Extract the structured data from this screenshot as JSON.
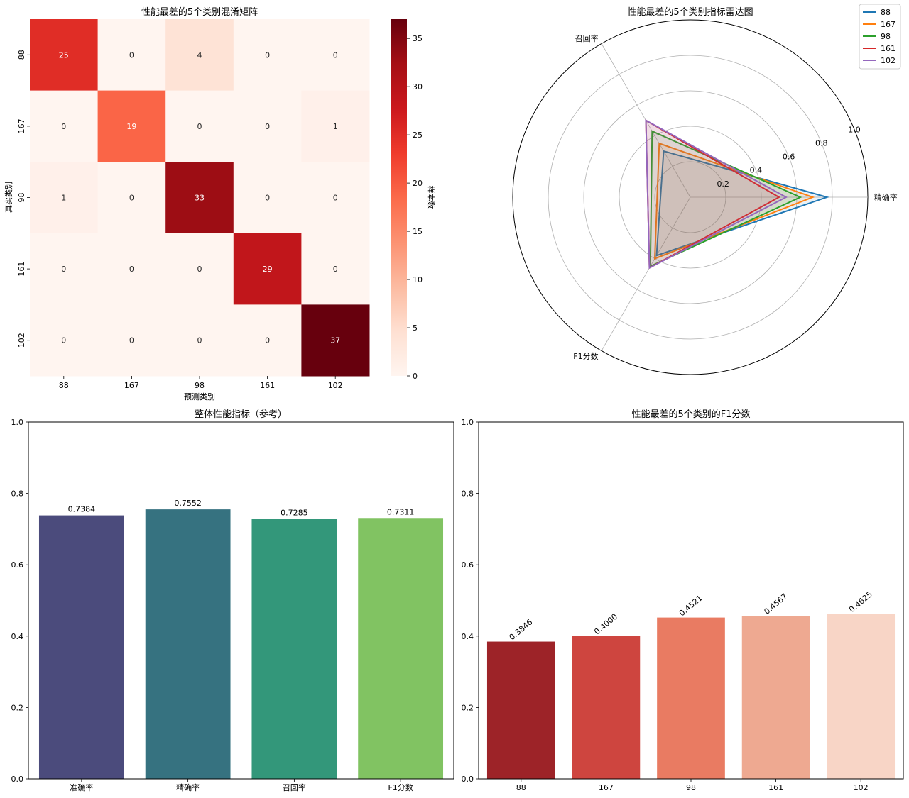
{
  "chart_data": [
    {
      "type": "heatmap",
      "title": "性能最差的5个类别混淆矩阵",
      "xlabel": "预测类别",
      "ylabel": "真实类别",
      "x_categories": [
        "88",
        "167",
        "98",
        "161",
        "102"
      ],
      "y_categories": [
        "88",
        "167",
        "98",
        "161",
        "102"
      ],
      "matrix": [
        [
          25,
          0,
          4,
          0,
          0
        ],
        [
          0,
          19,
          0,
          0,
          1
        ],
        [
          1,
          0,
          33,
          0,
          0
        ],
        [
          0,
          0,
          0,
          29,
          0
        ],
        [
          0,
          0,
          0,
          0,
          37
        ]
      ],
      "colormap": "Reds",
      "colorbar": {
        "label": "样本数",
        "min": 0,
        "max": 37,
        "ticks": [
          0,
          5,
          10,
          15,
          20,
          25,
          30,
          35
        ]
      }
    },
    {
      "type": "radar",
      "title": "性能最差的5个类别指标雷达图",
      "axes": [
        "精确率",
        "召回率",
        "F1分数"
      ],
      "rlim": [
        0,
        1.0
      ],
      "rticks": [
        0.2,
        0.4,
        0.6,
        0.8,
        1.0
      ],
      "rtick_labels": [
        "0.2",
        "0.4",
        "0.6",
        "0.8",
        "1.0"
      ],
      "legend_position": "top-right",
      "series": [
        {
          "name": "88",
          "color": "#1f77b4",
          "values": [
            0.77,
            0.3,
            0.38
          ]
        },
        {
          "name": "167",
          "color": "#ff7f0e",
          "values": [
            0.69,
            0.35,
            0.4
          ]
        },
        {
          "name": "98",
          "color": "#2ca02c",
          "values": [
            0.62,
            0.43,
            0.45
          ]
        },
        {
          "name": "161",
          "color": "#d62728",
          "values": [
            0.5,
            0.5,
            0.46
          ]
        },
        {
          "name": "102",
          "color": "#9467bd",
          "values": [
            0.54,
            0.5,
            0.46
          ]
        }
      ]
    },
    {
      "type": "bar",
      "title": "整体性能指标（参考）",
      "categories": [
        "准确率",
        "精确率",
        "召回率",
        "F1分数"
      ],
      "values": [
        0.7384,
        0.7552,
        0.7285,
        0.7311
      ],
      "value_labels": [
        "0.7384",
        "0.7552",
        "0.7285",
        "0.7311"
      ],
      "colors": [
        "#4b4b7c",
        "#367280",
        "#33977a",
        "#81c362"
      ],
      "ylim": [
        0,
        1.0
      ],
      "yticks": [
        "0.0",
        "0.2",
        "0.4",
        "0.6",
        "0.8",
        "1.0"
      ]
    },
    {
      "type": "bar",
      "title": "性能最差的5个类别的F1分数",
      "categories": [
        "88",
        "167",
        "98",
        "161",
        "102"
      ],
      "values": [
        0.3846,
        0.4,
        0.4521,
        0.4567,
        0.4625
      ],
      "value_labels": [
        "0.3846",
        "0.4000",
        "0.4521",
        "0.4567",
        "0.4625"
      ],
      "colors": [
        "#9d2328",
        "#ce453f",
        "#e97b62",
        "#eea991",
        "#f8d5c6"
      ],
      "ylim": [
        0,
        1.0
      ],
      "yticks": [
        "0.0",
        "0.2",
        "0.4",
        "0.6",
        "0.8",
        "1.0"
      ]
    }
  ]
}
